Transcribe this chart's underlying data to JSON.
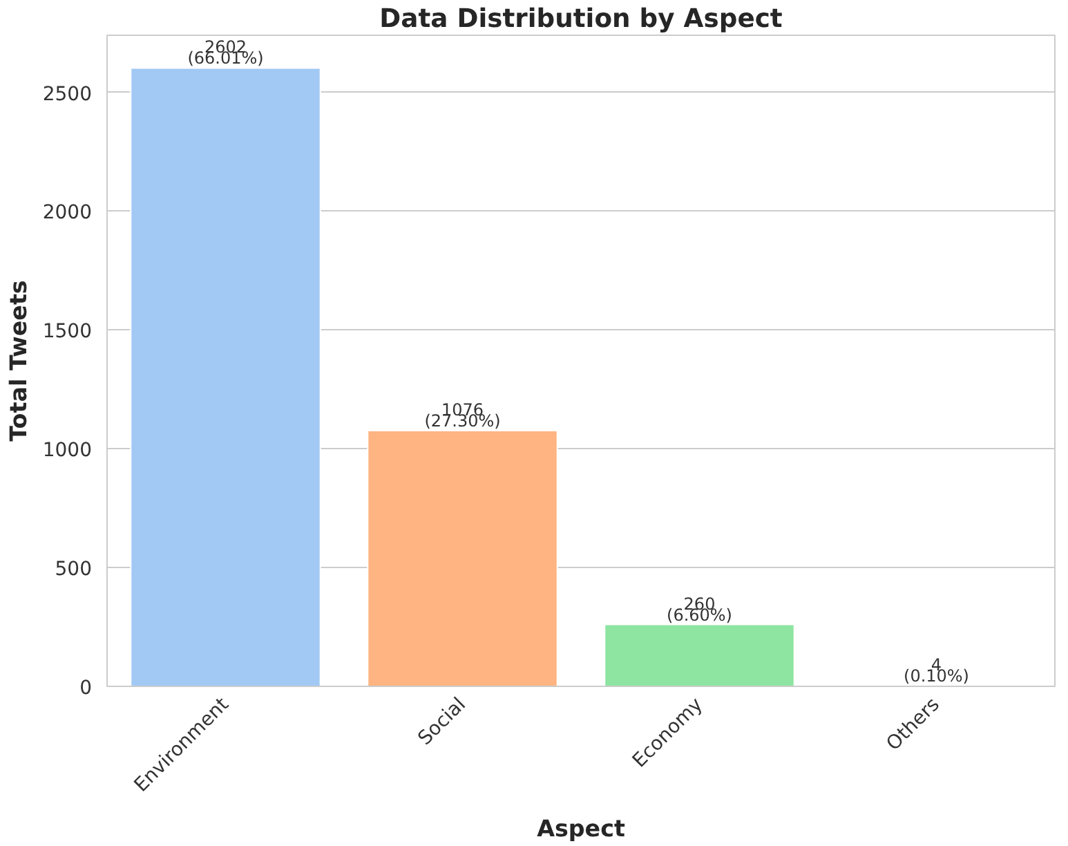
{
  "chart_data": {
    "type": "bar",
    "title": "Data Distribution by Aspect",
    "xlabel": "Aspect",
    "ylabel": "Total Tweets",
    "categories": [
      "Environment",
      "Social",
      "Economy",
      "Others"
    ],
    "values": [
      2602,
      1076,
      260,
      4
    ],
    "colors": [
      "#a1c9f4",
      "#ffb482",
      "#8de5a1",
      "#ff9f9b"
    ],
    "value_labels": [
      "2602\n(66.01%)",
      "1076\n(27.30%)",
      "260\n(6.60%)",
      "4\n(0.10%)"
    ],
    "ylim": [
      0,
      2740
    ],
    "yticks": [
      0,
      500,
      1000,
      1500,
      2000,
      2500
    ],
    "grid": "y"
  }
}
